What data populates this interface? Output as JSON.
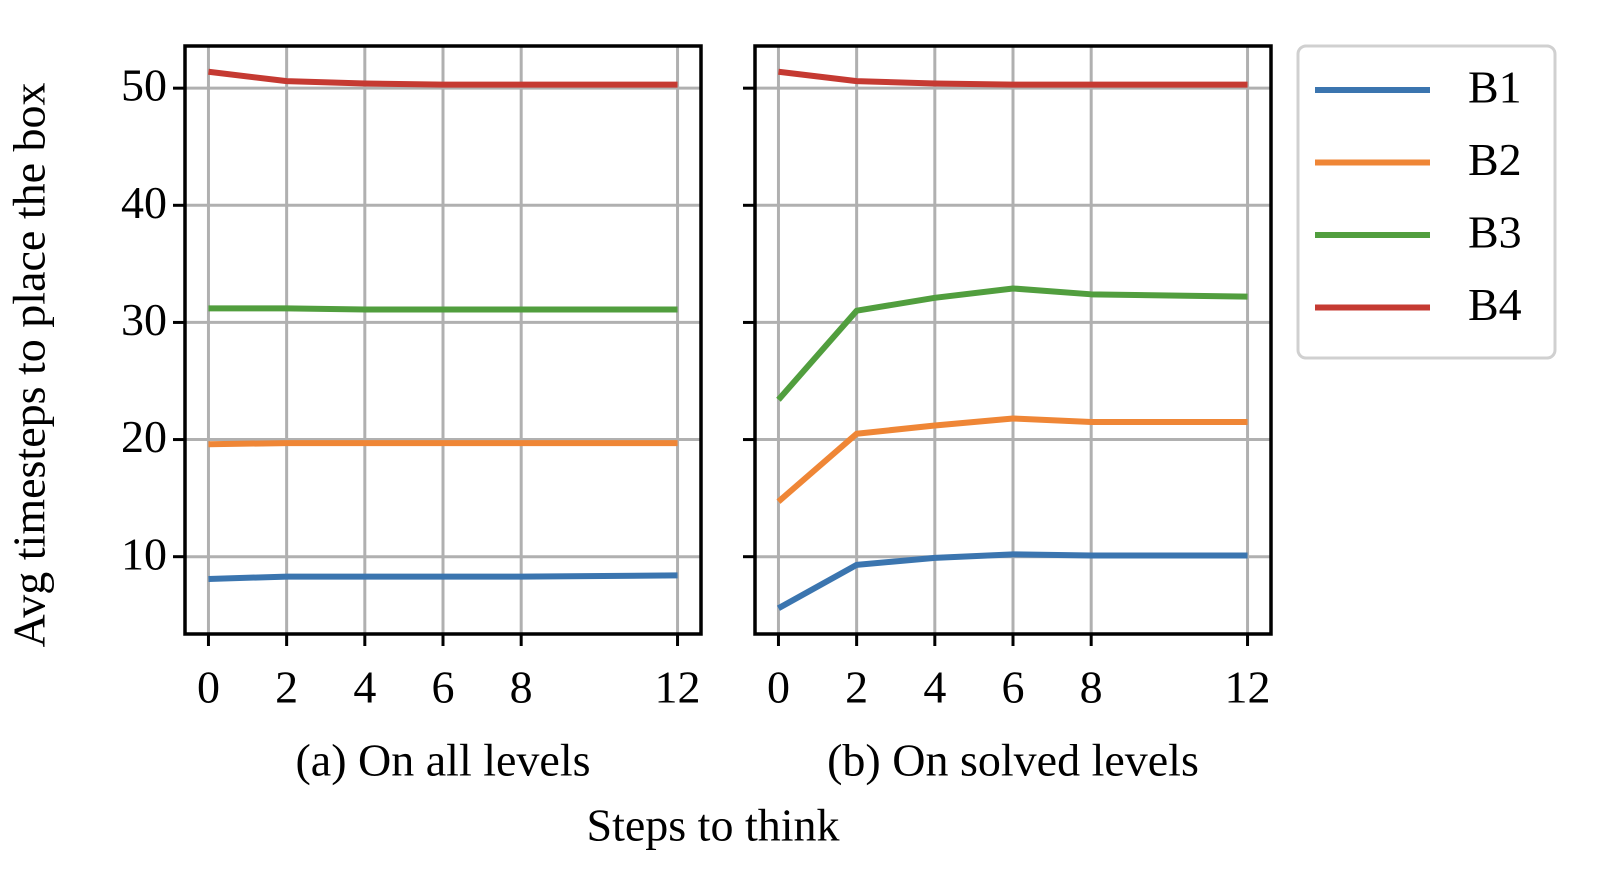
{
  "ylabel": "Avg timesteps to place the box",
  "xlabel": "Steps to think",
  "chart_data": [
    {
      "type": "line",
      "title": "(a) On all levels",
      "x": [
        0,
        2,
        4,
        6,
        8,
        12
      ],
      "xlim": [
        -0.6,
        12.6
      ],
      "xticks": [
        0,
        2,
        4,
        6,
        8,
        12
      ],
      "ylim": [
        3.4,
        53.6
      ],
      "yticks": [
        10,
        20,
        30,
        40,
        50
      ],
      "ytick_labels": true,
      "grid": true,
      "legend": "outside right",
      "series": [
        {
          "name": "B1",
          "color": "#3b75af",
          "values": [
            8.1,
            8.3,
            8.3,
            8.3,
            8.3,
            8.4
          ]
        },
        {
          "name": "B2",
          "color": "#ef8636",
          "values": [
            19.6,
            19.7,
            19.7,
            19.7,
            19.7,
            19.7
          ]
        },
        {
          "name": "B3",
          "color": "#519e3e",
          "values": [
            31.2,
            31.2,
            31.1,
            31.1,
            31.1,
            31.1
          ]
        },
        {
          "name": "B4",
          "color": "#c53a32",
          "values": [
            51.4,
            50.6,
            50.4,
            50.3,
            50.3,
            50.3
          ]
        }
      ]
    },
    {
      "type": "line",
      "title": "(b) On solved levels",
      "x": [
        0,
        2,
        4,
        6,
        8,
        12
      ],
      "xlim": [
        -0.6,
        12.6
      ],
      "xticks": [
        0,
        2,
        4,
        6,
        8,
        12
      ],
      "ylim": [
        3.4,
        53.6
      ],
      "yticks": [
        10,
        20,
        30,
        40,
        50
      ],
      "ytick_labels": false,
      "grid": true,
      "series": [
        {
          "name": "B1",
          "color": "#3b75af",
          "values": [
            5.6,
            9.3,
            9.9,
            10.2,
            10.1,
            10.1
          ]
        },
        {
          "name": "B2",
          "color": "#ef8636",
          "values": [
            14.7,
            20.5,
            21.2,
            21.8,
            21.5,
            21.5
          ]
        },
        {
          "name": "B3",
          "color": "#519e3e",
          "values": [
            23.4,
            31.0,
            32.1,
            32.9,
            32.4,
            32.2
          ]
        },
        {
          "name": "B4",
          "color": "#c53a32",
          "values": [
            51.4,
            50.6,
            50.4,
            50.3,
            50.3,
            50.3
          ]
        }
      ]
    }
  ]
}
